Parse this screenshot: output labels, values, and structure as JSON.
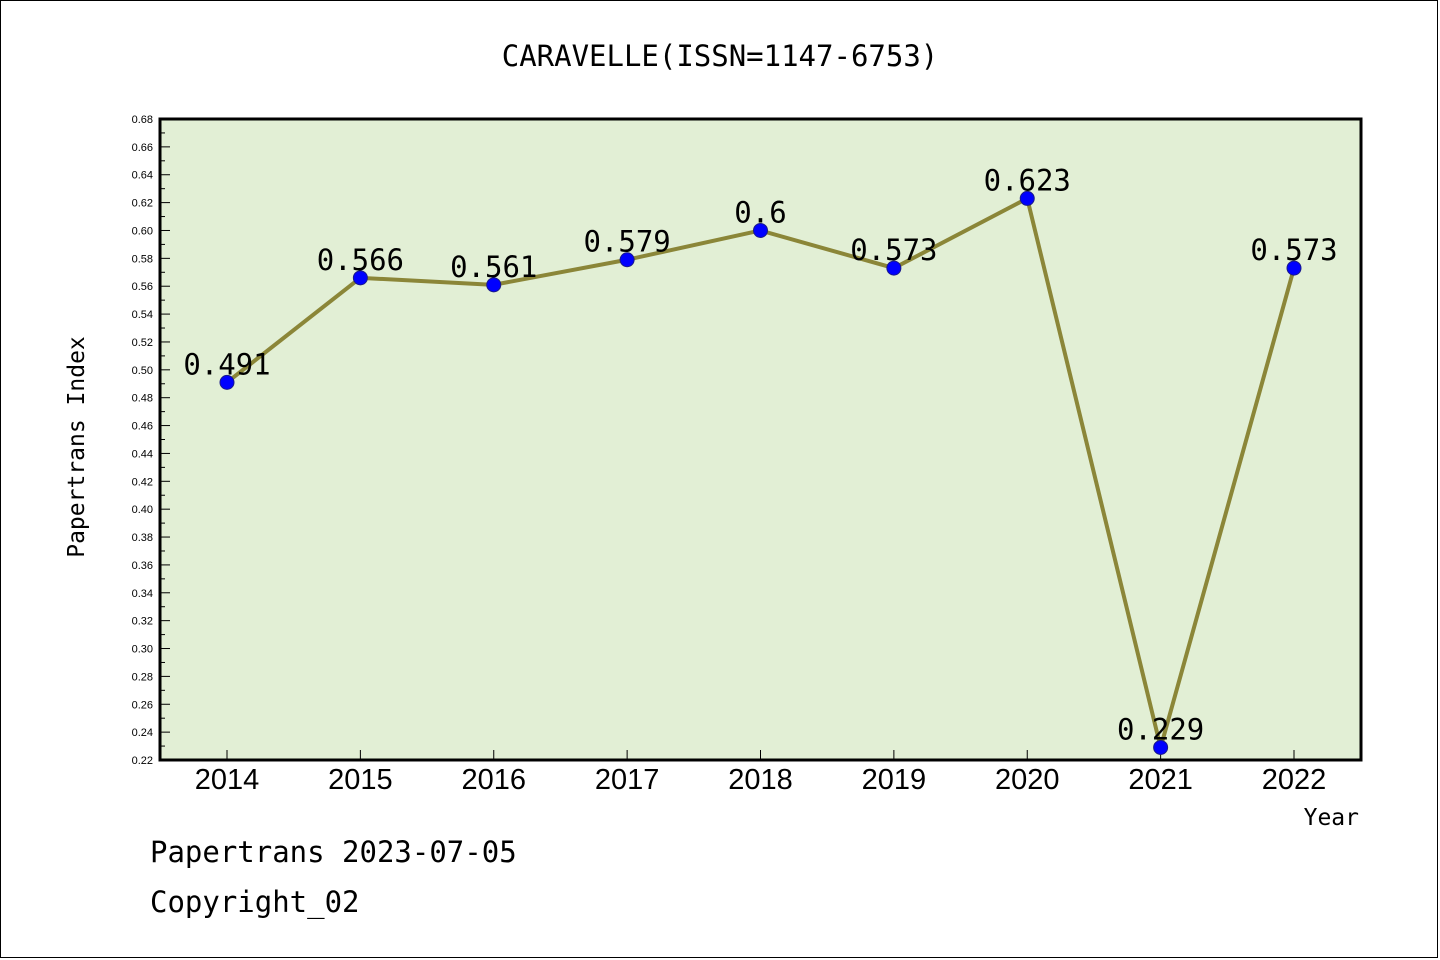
{
  "chart_data": {
    "type": "line",
    "title": "CARAVELLE(ISSN=1147-6753)",
    "xlabel": "Year",
    "ylabel": "Papertrans Index",
    "categories": [
      "2014",
      "2015",
      "2016",
      "2017",
      "2018",
      "2019",
      "2020",
      "2021",
      "2022"
    ],
    "series": [
      {
        "values": [
          0.491,
          0.566,
          0.561,
          0.579,
          0.6,
          0.573,
          0.623,
          0.229,
          0.573
        ],
        "labels": [
          "0.491",
          "0.566",
          "0.561",
          "0.579",
          "0.6",
          "0.573",
          "0.623",
          "0.229",
          "0.573"
        ]
      }
    ],
    "ylim": [
      0.22,
      0.68
    ],
    "yticks": [
      "0.22",
      "0.24",
      "0.26",
      "0.28",
      "0.30",
      "0.32",
      "0.34",
      "0.36",
      "0.38",
      "0.40",
      "0.42",
      "0.44",
      "0.46",
      "0.48",
      "0.50",
      "0.52",
      "0.54",
      "0.56",
      "0.58",
      "0.60",
      "0.62",
      "0.64",
      "0.66",
      "0.68"
    ],
    "grid": false,
    "legend": "none",
    "colors": {
      "plot_background": "#e2efd5",
      "line": "#8b8638",
      "marker": "#0000ff"
    }
  },
  "footer": {
    "line1": "Papertrans 2023-07-05",
    "line2": "Copyright_02"
  }
}
